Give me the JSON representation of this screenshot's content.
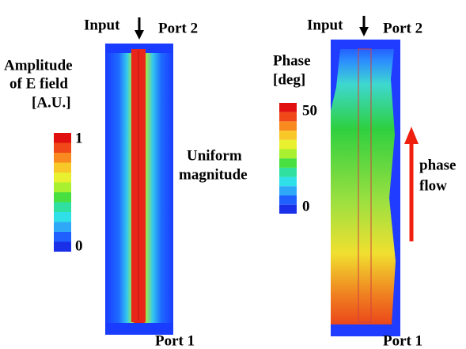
{
  "left_panel": {
    "input_label": "Input",
    "port_top": "Port 2",
    "port_bottom": "Port 1",
    "colorbar": {
      "title_lines": [
        "Amplitude",
        "of E field",
        "[A.U.]"
      ],
      "max_label": "1",
      "min_label": "0"
    },
    "annotation_lines": [
      "Uniform",
      "magnitude"
    ]
  },
  "right_panel": {
    "input_label": "Input",
    "port_top": "Port 2",
    "port_bottom": "Port 1",
    "colorbar": {
      "title_lines": [
        "Phase",
        "[deg]"
      ],
      "max_label": "50",
      "min_label": "0"
    },
    "annotation_lines": [
      "phase",
      "flow"
    ]
  }
}
